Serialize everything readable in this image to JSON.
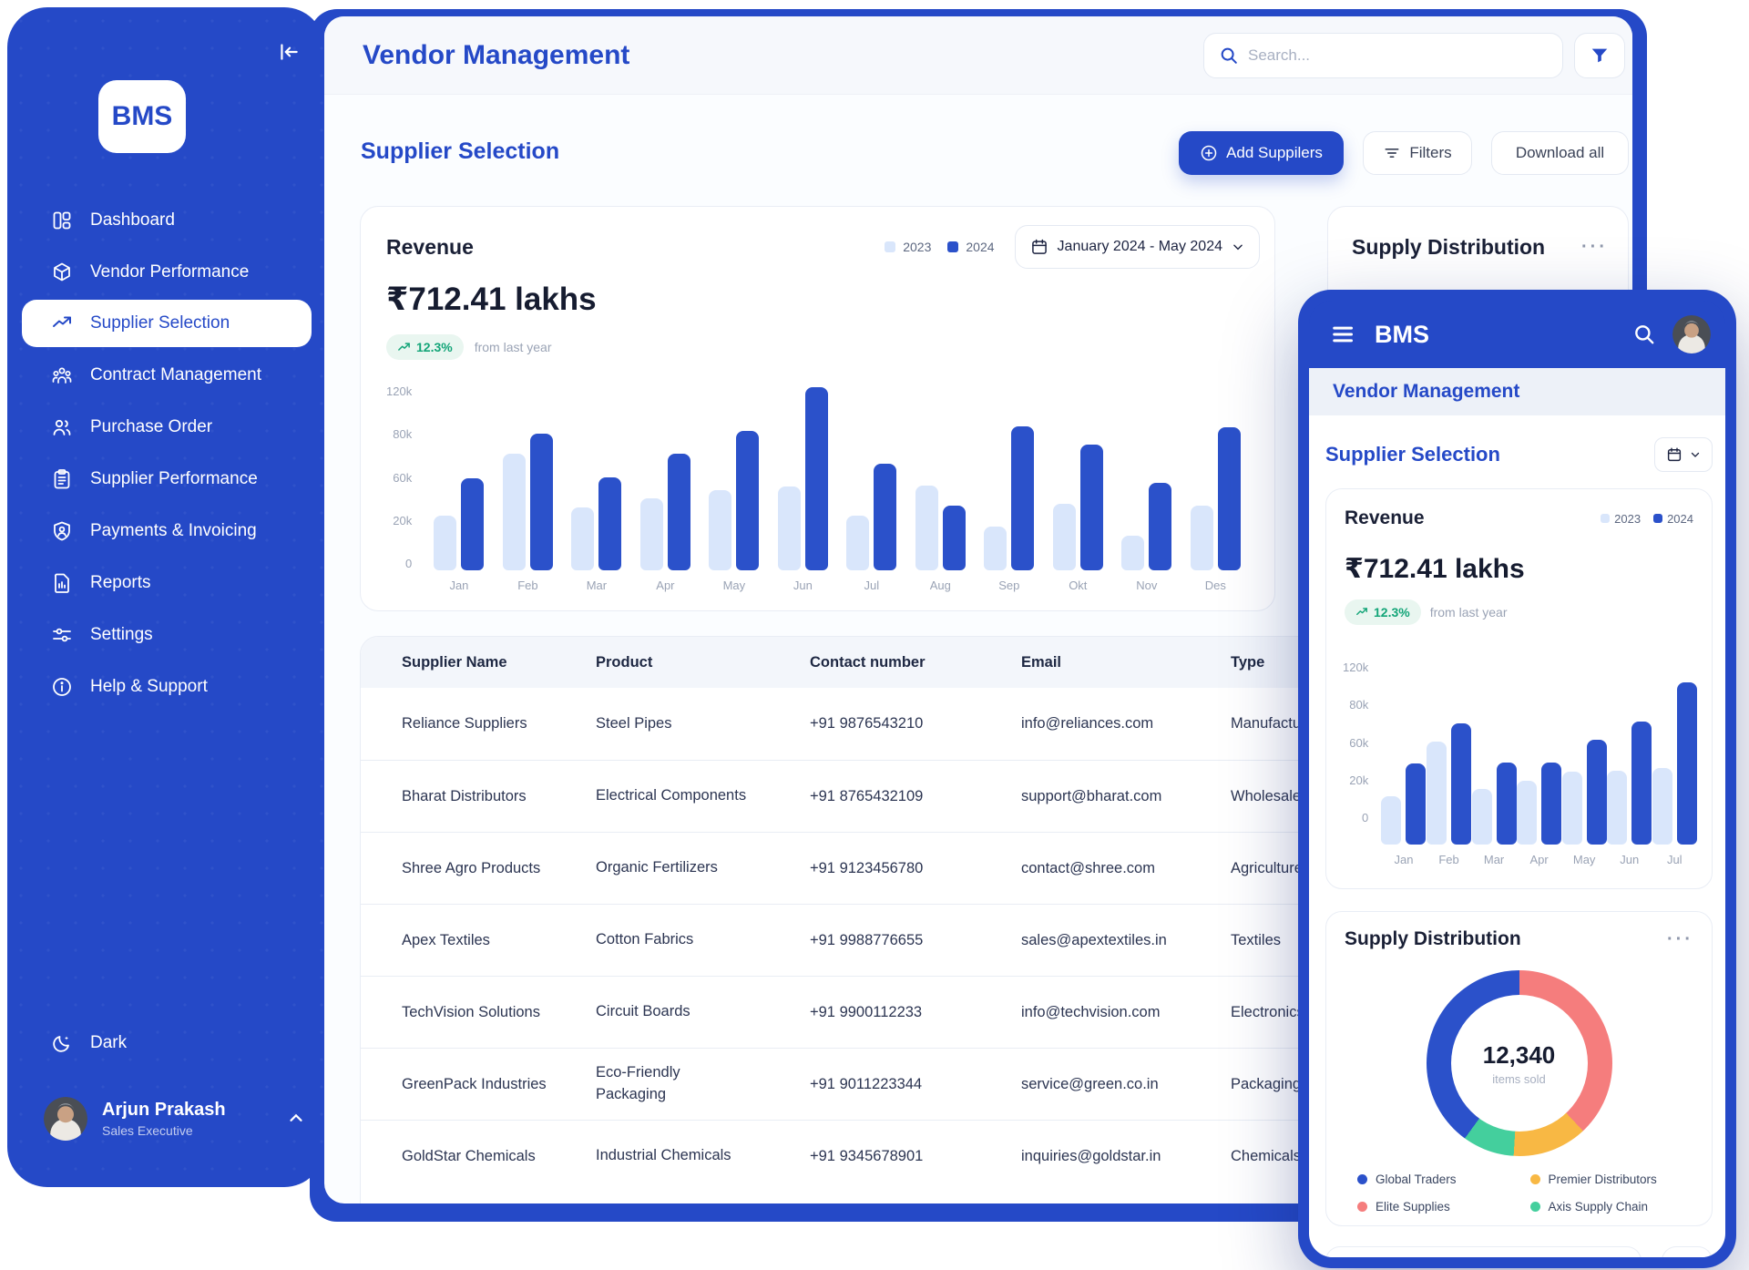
{
  "colors": {
    "primary": "#2549c7",
    "bar_2023": "#d9e6fb",
    "bar_2024": "#2b51ca",
    "positive_green": "#13a578",
    "donut_blue": "#2b51ca",
    "donut_salmon": "#f57d7d",
    "donut_yellow": "#f8b844",
    "donut_green": "#44cf9d"
  },
  "sidebar": {
    "logo": "BMS",
    "items": [
      {
        "label": "Dashboard",
        "icon": "dashboard-icon",
        "active": false
      },
      {
        "label": "Vendor Performance",
        "icon": "vendor-performance-icon",
        "active": false
      },
      {
        "label": "Supplier Selection",
        "icon": "trend-up-icon",
        "active": true
      },
      {
        "label": "Contract Management",
        "icon": "contract-management-icon",
        "active": false
      },
      {
        "label": "Purchase Order",
        "icon": "purchase-order-icon",
        "active": false
      },
      {
        "label": "Supplier Performance",
        "icon": "clipboard-icon",
        "active": false
      },
      {
        "label": "Payments & Invoicing",
        "icon": "shield-user-icon",
        "active": false
      },
      {
        "label": "Reports",
        "icon": "report-icon",
        "active": false
      },
      {
        "label": "Settings",
        "icon": "settings-icon",
        "active": false
      },
      {
        "label": "Help & Support",
        "icon": "info-icon",
        "active": false
      }
    ],
    "dark_label": "Dark",
    "user": {
      "name": "Arjun Prakash",
      "role": "Sales Executive"
    }
  },
  "topbar": {
    "title": "Vendor Management",
    "search_placeholder": "Search..."
  },
  "page": {
    "heading": "Supplier Selection",
    "add_button": "Add Suppilers",
    "filters_button": "Filters",
    "download_button": "Download all"
  },
  "revenue_card": {
    "title": "Revenue",
    "amount": "₹712.41 lakhs",
    "change": "12.3%",
    "change_note": "from last year",
    "legend_2023": "2023",
    "legend_2024": "2024",
    "date_range": "January 2024 - May 2024"
  },
  "supply_card_desktop": {
    "title": "Supply Distribution",
    "menu": "···"
  },
  "table": {
    "columns": [
      "Supplier Name",
      "Product",
      "Contact number",
      "Email",
      "Type"
    ],
    "rows": [
      {
        "name": "Reliance Suppliers",
        "product": "Steel Pipes",
        "contact": "+91 9876543210",
        "email": "info@reliances.com",
        "type": "Manufacturer"
      },
      {
        "name": "Bharat Distributors",
        "product": "Electrical Components",
        "contact": "+91 8765432109",
        "email": "support@bharat.com",
        "type": "Wholesaler"
      },
      {
        "name": "Shree Agro Products",
        "product": "Organic Fertilizers",
        "contact": "+91 9123456780",
        "email": "contact@shree.com",
        "type": "Agriculture"
      },
      {
        "name": "Apex Textiles",
        "product": "Cotton Fabrics",
        "contact": "+91 9988776655",
        "email": "sales@apextextiles.in",
        "type": "Textiles"
      },
      {
        "name": "TechVision Solutions",
        "product": "Circuit Boards",
        "contact": "+91 9900112233",
        "email": "info@techvision.com",
        "type": "Electronics"
      },
      {
        "name": "GreenPack Industries",
        "product": "Eco-Friendly Packaging",
        "contact": "+91 9011223344",
        "email": "service@green.co.in",
        "type": "Packaging"
      },
      {
        "name": "GoldStar Chemicals",
        "product": "Industrial Chemicals",
        "contact": "+91 9345678901",
        "email": "inquiries@goldstar.in",
        "type": "Chemicals"
      }
    ]
  },
  "mobile": {
    "brand": "BMS",
    "title": "Vendor Management",
    "heading": "Supplier Selection",
    "revenue": {
      "title": "Revenue",
      "amount": "₹712.41 lakhs",
      "change": "12.3%",
      "change_note": "from last year",
      "legend_2023": "2023",
      "legend_2024": "2024"
    },
    "supply": {
      "title": "Supply Distribution",
      "menu": "···",
      "total": "12,340",
      "total_note": "items sold"
    }
  },
  "chart_data": [
    {
      "id": "revenue_desktop",
      "type": "bar",
      "title": "Revenue",
      "categories": [
        "Jan",
        "Feb",
        "Mar",
        "Apr",
        "May",
        "Jun",
        "Jul",
        "Aug",
        "Sep",
        "Okt",
        "Nov",
        "Des"
      ],
      "series": [
        {
          "name": "2023",
          "values": [
            27,
            70,
            34,
            42,
            49,
            52,
            27,
            53,
            19,
            37,
            15,
            36
          ]
        },
        {
          "name": "2024",
          "values": [
            59,
            79,
            60,
            70,
            80,
            118,
            66,
            36,
            84,
            74,
            55,
            83
          ]
        }
      ],
      "value_unit": "k",
      "tick_labels": [
        "120k",
        "80k",
        "60k",
        "20k",
        "0"
      ],
      "tick_values": [
        0,
        20,
        60,
        80,
        120
      ],
      "ylim": [
        0,
        120
      ],
      "grid": false,
      "legend_position": "top-right"
    },
    {
      "id": "revenue_mobile",
      "type": "bar",
      "title": "Revenue (mobile)",
      "categories": [
        "Jan",
        "Feb",
        "Mar",
        "Apr",
        "May",
        "Jun",
        "Jul"
      ],
      "series": [
        {
          "name": "2023",
          "values": [
            27,
            70,
            34,
            42,
            51,
            52,
            55
          ]
        },
        {
          "name": "2024",
          "values": [
            59,
            79,
            60,
            60,
            71,
            80,
            118
          ]
        }
      ],
      "value_unit": "k",
      "tick_labels": [
        "120k",
        "80k",
        "60k",
        "20k",
        "0"
      ],
      "tick_values": [
        0,
        20,
        60,
        80,
        120
      ],
      "ylim": [
        0,
        120
      ],
      "grid": false,
      "legend_position": "top-right"
    },
    {
      "id": "supply_distribution",
      "type": "pie",
      "title": "Supply Distribution",
      "center_label": "12,340",
      "center_note": "items sold",
      "segments_clockwise_from_top": [
        {
          "label": "Elite Supplies",
          "percent": 38,
          "color": "#f57d7d"
        },
        {
          "label": "Premier Distributors",
          "percent": 13,
          "color": "#f8b844"
        },
        {
          "label": "Axis Supply Chain",
          "percent": 9,
          "color": "#44cf9d"
        },
        {
          "label": "Global Traders",
          "percent": 40,
          "color": "#2b51ca"
        }
      ],
      "legend_display_order": [
        {
          "label": "Global Traders",
          "color": "#2b51ca"
        },
        {
          "label": "Premier Distributors",
          "color": "#f8b844"
        },
        {
          "label": "Elite Supplies",
          "color": "#f57d7d"
        },
        {
          "label": "Axis Supply Chain",
          "color": "#44cf9d"
        }
      ]
    }
  ]
}
